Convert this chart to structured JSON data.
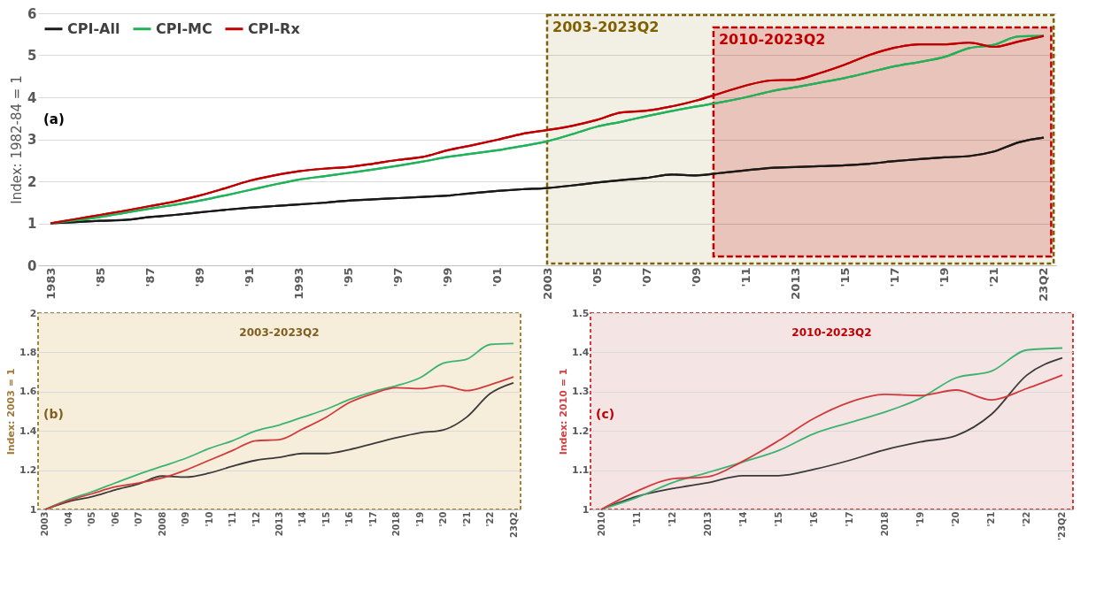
{
  "chart_data": [
    {
      "type": "line",
      "ylabel": "Index: 1982-84 = 1",
      "annotations": [
        "(a)"
      ],
      "legend": "top left",
      "grid": "y",
      "x": [
        1983,
        1984,
        1985,
        1986,
        1987,
        1988,
        1989,
        1990,
        1991,
        1992,
        1993,
        1994,
        1995,
        1996,
        1997,
        1998,
        1999,
        2000,
        2001,
        2002,
        2003,
        2004,
        2005,
        2006,
        2007,
        2008,
        2009,
        2010,
        2011,
        2012,
        2013,
        2014,
        2015,
        2016,
        2017,
        2018,
        2019,
        2020,
        2021,
        2022,
        2023
      ],
      "xlim": [
        1982.5,
        2023.5
      ],
      "xticks": [
        {
          "value": 1983,
          "label": "1983"
        },
        {
          "value": 1985,
          "label": "'85"
        },
        {
          "value": 1987,
          "label": "'87"
        },
        {
          "value": 1989,
          "label": "'89"
        },
        {
          "value": 1991,
          "label": "'91"
        },
        {
          "value": 1993,
          "label": "1993"
        },
        {
          "value": 1995,
          "label": "'95"
        },
        {
          "value": 1997,
          "label": "'97"
        },
        {
          "value": 1999,
          "label": "'99"
        },
        {
          "value": 2001,
          "label": "'01"
        },
        {
          "value": 2003,
          "label": "2003"
        },
        {
          "value": 2005,
          "label": "'05"
        },
        {
          "value": 2007,
          "label": "'07"
        },
        {
          "value": 2009,
          "label": "'09"
        },
        {
          "value": 2011,
          "label": "'11"
        },
        {
          "value": 2013,
          "label": "2013"
        },
        {
          "value": 2015,
          "label": "'15"
        },
        {
          "value": 2017,
          "label": "'17"
        },
        {
          "value": 2019,
          "label": "'19"
        },
        {
          "value": 2021,
          "label": "'21"
        },
        {
          "value": 2023,
          "label": "23Q2"
        }
      ],
      "ylim": [
        0,
        6
      ],
      "yticks": [
        0,
        1,
        2,
        3,
        4,
        5,
        6
      ],
      "bands": [
        {
          "axis": "x",
          "from": 2003,
          "to": 2023.4,
          "label": "2003-2023Q2",
          "color": "#7f6000"
        },
        {
          "axis": "x",
          "from": 2009.7,
          "to": 2023.3,
          "label": "2010-2023Q2",
          "color": "#c00000"
        }
      ],
      "series": [
        {
          "name": "CPI-All",
          "color": "#1a1a1a",
          "values": [
            1.0,
            1.03,
            1.06,
            1.08,
            1.15,
            1.2,
            1.26,
            1.32,
            1.37,
            1.41,
            1.45,
            1.49,
            1.54,
            1.57,
            1.6,
            1.63,
            1.66,
            1.72,
            1.77,
            1.81,
            1.84,
            1.9,
            1.97,
            2.03,
            2.08,
            2.16,
            2.14,
            2.2,
            2.26,
            2.32,
            2.34,
            2.36,
            2.38,
            2.42,
            2.48,
            2.53,
            2.57,
            2.6,
            2.71,
            2.93,
            3.04
          ]
        },
        {
          "name": "CPI-MC",
          "color": "#22b35a",
          "values": [
            1.0,
            1.07,
            1.15,
            1.25,
            1.35,
            1.44,
            1.54,
            1.66,
            1.79,
            1.92,
            2.04,
            2.12,
            2.2,
            2.28,
            2.37,
            2.47,
            2.58,
            2.66,
            2.74,
            2.84,
            2.95,
            3.12,
            3.3,
            3.42,
            3.55,
            3.67,
            3.78,
            3.88,
            4.0,
            4.14,
            4.24,
            4.35,
            4.46,
            4.6,
            4.74,
            4.84,
            4.96,
            5.17,
            5.25,
            5.45,
            5.46
          ]
        },
        {
          "name": "CPI-Rx",
          "color": "#c00000",
          "values": [
            1.0,
            1.1,
            1.2,
            1.3,
            1.41,
            1.52,
            1.66,
            1.83,
            2.01,
            2.14,
            2.24,
            2.3,
            2.34,
            2.42,
            2.51,
            2.58,
            2.74,
            2.86,
            2.99,
            3.13,
            3.22,
            3.32,
            3.46,
            3.64,
            3.68,
            3.78,
            3.92,
            4.1,
            4.28,
            4.4,
            4.42,
            4.58,
            4.78,
            5.01,
            5.18,
            5.26,
            5.26,
            5.3,
            5.2,
            5.33,
            5.46
          ]
        }
      ]
    },
    {
      "type": "line",
      "title": "2003-2023Q2",
      "ylabel": "Index: 2003 = 1",
      "annotations": [
        "(b)"
      ],
      "grid": "y",
      "categories": [
        "2003",
        "'04",
        "'05",
        "'06",
        "'07",
        "2008",
        "'09",
        "'10",
        "'11",
        "'12",
        "2013",
        "'14",
        "'15",
        "'16",
        "'17",
        "2018",
        "'19",
        "'20",
        "'21",
        "'22",
        "23Q2"
      ],
      "ylim": [
        1,
        2
      ],
      "yticks": [
        1,
        1.2,
        1.4,
        1.6,
        1.8,
        2
      ],
      "series": [
        {
          "color": "#3a3a3a",
          "values": [
            1.0,
            1.04,
            1.065,
            1.1,
            1.13,
            1.17,
            1.165,
            1.185,
            1.22,
            1.25,
            1.265,
            1.285,
            1.285,
            1.305,
            1.335,
            1.365,
            1.39,
            1.405,
            1.47,
            1.59,
            1.645
          ]
        },
        {
          "color": "#3cb371",
          "values": [
            1.0,
            1.05,
            1.09,
            1.135,
            1.18,
            1.22,
            1.26,
            1.31,
            1.35,
            1.4,
            1.43,
            1.47,
            1.51,
            1.56,
            1.6,
            1.63,
            1.67,
            1.745,
            1.765,
            1.84,
            1.845
          ]
        },
        {
          "color": "#d03a3a",
          "values": [
            1.0,
            1.045,
            1.08,
            1.115,
            1.135,
            1.16,
            1.2,
            1.25,
            1.3,
            1.35,
            1.355,
            1.41,
            1.47,
            1.545,
            1.59,
            1.62,
            1.615,
            1.63,
            1.605,
            1.635,
            1.675
          ]
        }
      ]
    },
    {
      "type": "line",
      "title": "2010-2023Q2",
      "ylabel": "Index: 2010 = 1",
      "annotations": [
        "(c)"
      ],
      "grid": "y",
      "categories": [
        "2010",
        "'11",
        "'12",
        "2013",
        "'14",
        "'15",
        "'16",
        "'17",
        "2018",
        "'19",
        "'20",
        "'21",
        "'22",
        "'23Q2"
      ],
      "ylim": [
        1,
        1.5
      ],
      "yticks": [
        1,
        1.1,
        1.2,
        1.3,
        1.4,
        1.5
      ],
      "series": [
        {
          "color": "#3a3a3a",
          "values": [
            1.0,
            1.033,
            1.053,
            1.068,
            1.086,
            1.086,
            1.102,
            1.125,
            1.152,
            1.172,
            1.188,
            1.242,
            1.342,
            1.386
          ]
        },
        {
          "color": "#3cb371",
          "values": [
            1.0,
            1.03,
            1.068,
            1.094,
            1.121,
            1.15,
            1.193,
            1.221,
            1.248,
            1.283,
            1.335,
            1.352,
            1.406,
            1.411
          ]
        },
        {
          "color": "#d03a3a",
          "values": [
            1.0,
            1.046,
            1.078,
            1.083,
            1.123,
            1.175,
            1.232,
            1.273,
            1.293,
            1.29,
            1.304,
            1.279,
            1.308,
            1.342
          ]
        }
      ]
    }
  ]
}
